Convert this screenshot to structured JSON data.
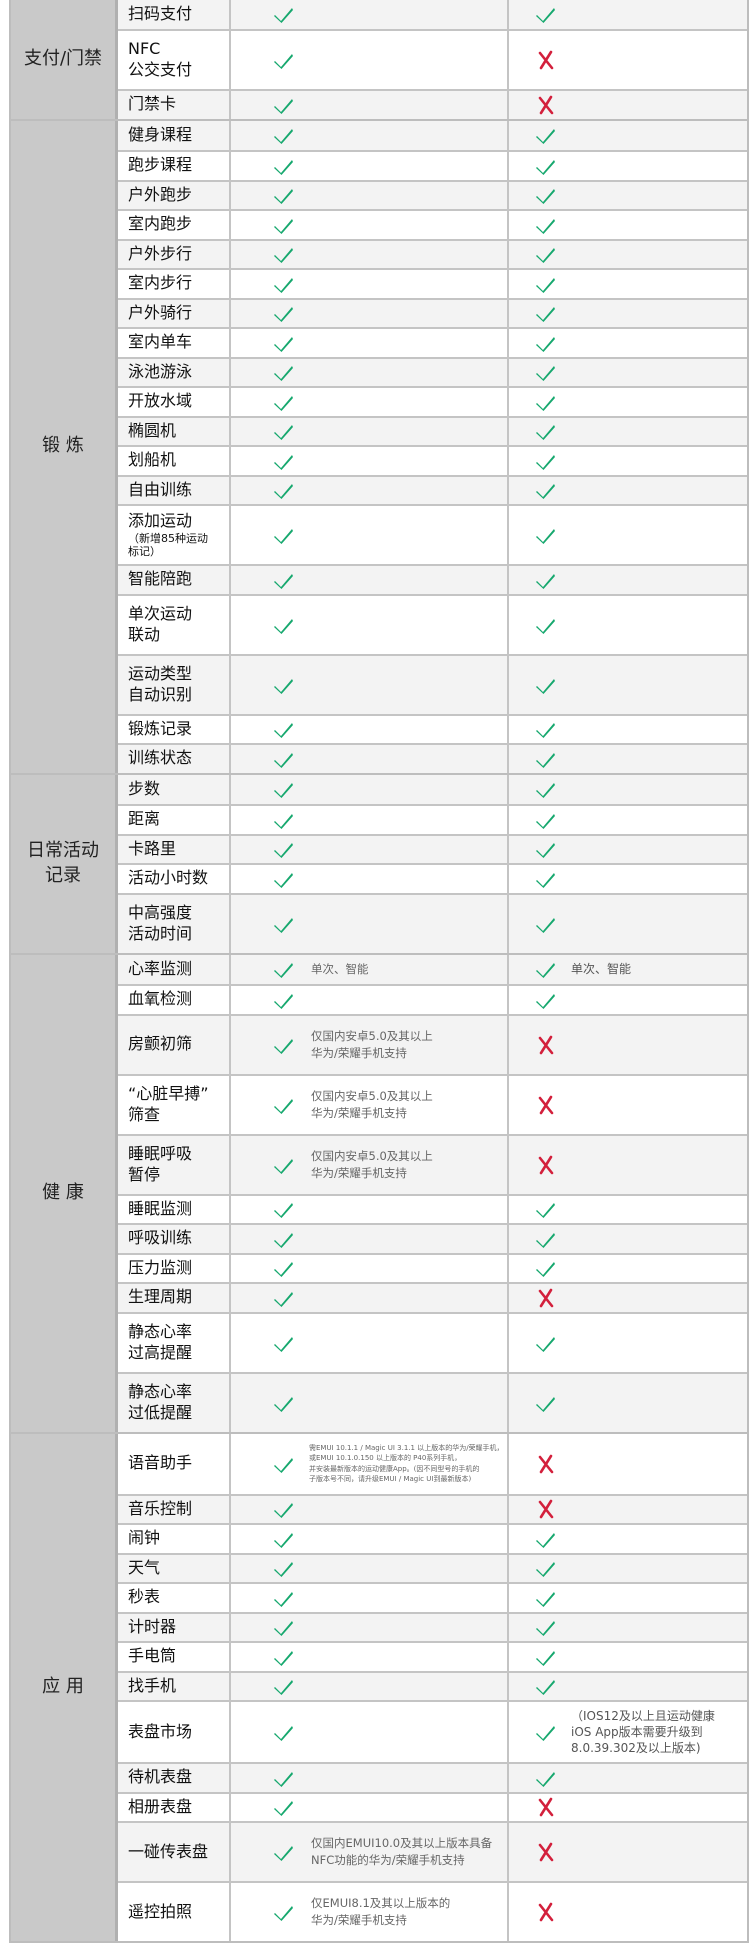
{
  "colors": {
    "check": "#16a86e",
    "cross": "#d3203c",
    "category_bg": "#c9c9c9",
    "stripe": "#f3f3f3"
  },
  "icons": {
    "yes": "check-icon",
    "no": "cross-icon"
  },
  "sections": [
    {
      "label": "支付/门禁",
      "rows": [
        {
          "name": "扫码支付",
          "mid": {
            "ok": true
          },
          "right": {
            "ok": true
          }
        },
        {
          "name": "NFC\n公交支付",
          "mid": {
            "ok": true
          },
          "right": {
            "ok": false
          }
        },
        {
          "name": "门禁卡",
          "mid": {
            "ok": true
          },
          "right": {
            "ok": false
          }
        }
      ]
    },
    {
      "label": "锻 炼",
      "rows": [
        {
          "name": "健身课程",
          "mid": {
            "ok": true
          },
          "right": {
            "ok": true
          }
        },
        {
          "name": "跑步课程",
          "mid": {
            "ok": true
          },
          "right": {
            "ok": true
          }
        },
        {
          "name": "户外跑步",
          "mid": {
            "ok": true
          },
          "right": {
            "ok": true
          }
        },
        {
          "name": "室内跑步",
          "mid": {
            "ok": true
          },
          "right": {
            "ok": true
          }
        },
        {
          "name": "户外步行",
          "mid": {
            "ok": true
          },
          "right": {
            "ok": true
          }
        },
        {
          "name": "室内步行",
          "mid": {
            "ok": true
          },
          "right": {
            "ok": true
          }
        },
        {
          "name": "户外骑行",
          "mid": {
            "ok": true
          },
          "right": {
            "ok": true
          }
        },
        {
          "name": "室内单车",
          "mid": {
            "ok": true
          },
          "right": {
            "ok": true
          }
        },
        {
          "name": "泳池游泳",
          "mid": {
            "ok": true
          },
          "right": {
            "ok": true
          }
        },
        {
          "name": "开放水域",
          "mid": {
            "ok": true
          },
          "right": {
            "ok": true
          }
        },
        {
          "name": "椭圆机",
          "mid": {
            "ok": true
          },
          "right": {
            "ok": true
          }
        },
        {
          "name": "划船机",
          "mid": {
            "ok": true
          },
          "right": {
            "ok": true
          }
        },
        {
          "name": "自由训练",
          "mid": {
            "ok": true
          },
          "right": {
            "ok": true
          }
        },
        {
          "name": "添加运动",
          "sub": "（新增85种运动\n标记）",
          "mid": {
            "ok": true
          },
          "right": {
            "ok": true
          }
        },
        {
          "name": "智能陪跑",
          "mid": {
            "ok": true
          },
          "right": {
            "ok": true
          }
        },
        {
          "name": "单次运动\n联动",
          "mid": {
            "ok": true
          },
          "right": {
            "ok": true
          }
        },
        {
          "name": "运动类型\n自动识别",
          "mid": {
            "ok": true
          },
          "right": {
            "ok": true
          }
        },
        {
          "name": "锻炼记录",
          "mid": {
            "ok": true
          },
          "right": {
            "ok": true
          }
        },
        {
          "name": "训练状态",
          "mid": {
            "ok": true
          },
          "right": {
            "ok": true
          }
        }
      ]
    },
    {
      "label": "日常活动\n记录",
      "rows": [
        {
          "name": "步数",
          "mid": {
            "ok": true
          },
          "right": {
            "ok": true
          }
        },
        {
          "name": "距离",
          "mid": {
            "ok": true
          },
          "right": {
            "ok": true
          }
        },
        {
          "name": "卡路里",
          "mid": {
            "ok": true
          },
          "right": {
            "ok": true
          }
        },
        {
          "name": "活动小时数",
          "mid": {
            "ok": true
          },
          "right": {
            "ok": true
          }
        },
        {
          "name": "中高强度\n活动时间",
          "mid": {
            "ok": true
          },
          "right": {
            "ok": true
          }
        }
      ]
    },
    {
      "label": "健 康",
      "rows": [
        {
          "name": "心率监测",
          "mid": {
            "ok": true,
            "note": "单次、智能"
          },
          "right": {
            "ok": true,
            "note": "单次、智能"
          }
        },
        {
          "name": "血氧检测",
          "mid": {
            "ok": true
          },
          "right": {
            "ok": true
          }
        },
        {
          "name": "房颤初筛",
          "mid": {
            "ok": true,
            "note": "仅国内安卓5.0及其以上\n华为/荣耀手机支持"
          },
          "right": {
            "ok": false
          }
        },
        {
          "name": "“心脏早搏”\n筛查",
          "mid": {
            "ok": true,
            "note": "仅国内安卓5.0及其以上\n华为/荣耀手机支持"
          },
          "right": {
            "ok": false
          }
        },
        {
          "name": "睡眠呼吸\n暂停",
          "mid": {
            "ok": true,
            "note": "仅国内安卓5.0及其以上\n华为/荣耀手机支持"
          },
          "right": {
            "ok": false
          }
        },
        {
          "name": "睡眠监测",
          "mid": {
            "ok": true
          },
          "right": {
            "ok": true
          }
        },
        {
          "name": "呼吸训练",
          "mid": {
            "ok": true
          },
          "right": {
            "ok": true
          }
        },
        {
          "name": "压力监测",
          "mid": {
            "ok": true
          },
          "right": {
            "ok": true
          }
        },
        {
          "name": "生理周期",
          "mid": {
            "ok": true
          },
          "right": {
            "ok": false
          }
        },
        {
          "name": "静态心率\n过高提醒",
          "mid": {
            "ok": true
          },
          "right": {
            "ok": true
          }
        },
        {
          "name": "静态心率\n过低提醒",
          "mid": {
            "ok": true
          },
          "right": {
            "ok": true
          }
        }
      ]
    },
    {
      "label": "应 用",
      "rows": [
        {
          "name": "语音助手",
          "mid": {
            "ok": true,
            "note": "需EMUI 10.1.1 / Magic UI 3.1.1 以上版本的华为/荣耀手机，\n或EMUI 10.1.0.150 以上版本的 P40系列手机，\n并安装最新版本的运动健康App。(因不同型号的手机的\n子版本号不同，请升级EMUI / Magic UI到最新版本)",
            "tiny": true
          },
          "right": {
            "ok": false
          }
        },
        {
          "name": "音乐控制",
          "mid": {
            "ok": true
          },
          "right": {
            "ok": false
          }
        },
        {
          "name": "闹钟",
          "mid": {
            "ok": true
          },
          "right": {
            "ok": true
          }
        },
        {
          "name": "天气",
          "mid": {
            "ok": true
          },
          "right": {
            "ok": true
          }
        },
        {
          "name": "秒表",
          "mid": {
            "ok": true
          },
          "right": {
            "ok": true
          }
        },
        {
          "name": "计时器",
          "mid": {
            "ok": true
          },
          "right": {
            "ok": true
          }
        },
        {
          "name": "手电筒",
          "mid": {
            "ok": true
          },
          "right": {
            "ok": true
          }
        },
        {
          "name": "找手机",
          "mid": {
            "ok": true
          },
          "right": {
            "ok": true
          }
        },
        {
          "name": "表盘市场",
          "mid": {
            "ok": true
          },
          "right": {
            "ok": true,
            "note": "（IOS12及以上且运动健康\niOS App版本需要升级到\n8.0.39.302及以上版本)"
          }
        },
        {
          "name": "待机表盘",
          "mid": {
            "ok": true
          },
          "right": {
            "ok": true
          }
        },
        {
          "name": "相册表盘",
          "mid": {
            "ok": true
          },
          "right": {
            "ok": false
          }
        },
        {
          "name": "一碰传表盘",
          "mid": {
            "ok": true,
            "note": "仅国内EMUI10.0及其以上版本具备\nNFC功能的华为/荣耀手机支持"
          },
          "right": {
            "ok": false
          }
        },
        {
          "name": "遥控拍照",
          "mid": {
            "ok": true,
            "note": "仅EMUI8.1及其以上版本的\n华为/荣耀手机支持"
          },
          "right": {
            "ok": false
          }
        }
      ]
    }
  ]
}
